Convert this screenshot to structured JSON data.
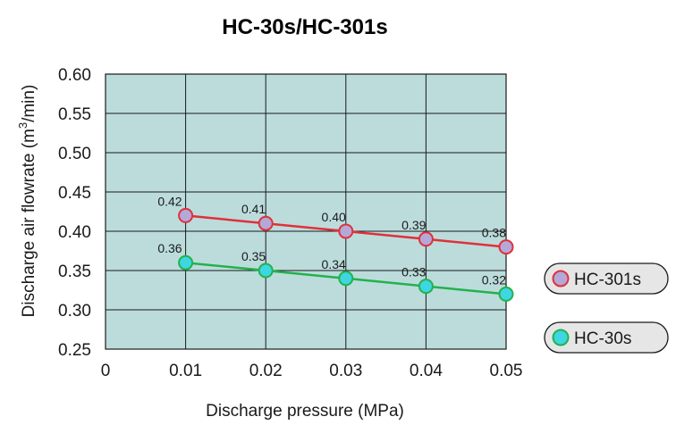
{
  "chart_data": {
    "type": "line",
    "title": "HC-30s/HC-301s",
    "xlabel": "Discharge pressure (MPa)",
    "ylabel_prefix": "Discharge air flowrate (m",
    "ylabel_sup": "3",
    "ylabel_suffix": "/min)",
    "x_ticks": [
      "0",
      "0.01",
      "0.02",
      "0.03",
      "0.04",
      "0.05"
    ],
    "y_ticks": [
      "0.25",
      "0.30",
      "0.35",
      "0.40",
      "0.45",
      "0.50",
      "0.55",
      "0.60"
    ],
    "xlim": [
      0,
      0.05
    ],
    "ylim": [
      0.25,
      0.6
    ],
    "grid": true,
    "plot_background": "#bcdcdc",
    "legend_position": "right",
    "series": [
      {
        "name": "HC-301s",
        "x": [
          0.01,
          0.02,
          0.03,
          0.04,
          0.05
        ],
        "y": [
          0.42,
          0.41,
          0.4,
          0.39,
          0.38
        ],
        "labels": [
          "0.42",
          "0.41",
          "0.40",
          "0.39",
          "0.38"
        ],
        "line_color": "#e0303a",
        "marker_fill": "#b4a8d8",
        "marker_edge": "#e0303a"
      },
      {
        "name": "HC-30s",
        "x": [
          0.01,
          0.02,
          0.03,
          0.04,
          0.05
        ],
        "y": [
          0.36,
          0.35,
          0.34,
          0.33,
          0.32
        ],
        "labels": [
          "0.36",
          "0.35",
          "0.34",
          "0.33",
          "0.32"
        ],
        "line_color": "#22b24c",
        "marker_fill": "#3ed6e0",
        "marker_edge": "#22b24c"
      }
    ]
  }
}
